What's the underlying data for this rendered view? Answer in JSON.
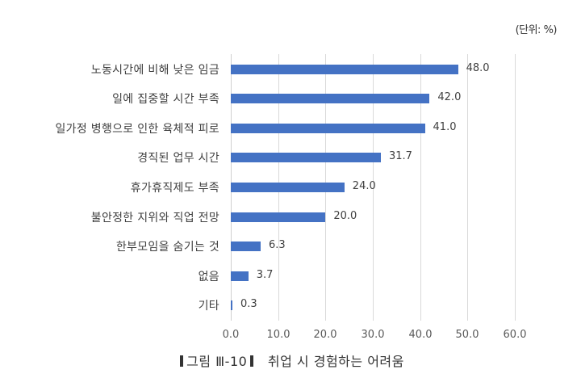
{
  "unit_label": "(단위: %)",
  "caption": {
    "figure": "그림 Ⅲ-10",
    "title": "취업 시 경험하는 어려움"
  },
  "chart_data": {
    "type": "bar",
    "orientation": "horizontal",
    "title": "취업 시 경험하는 어려움",
    "xlabel": "",
    "ylabel": "",
    "unit": "%",
    "xlim": [
      0,
      60
    ],
    "xticks": [
      "0.0",
      "10.0",
      "20.0",
      "30.0",
      "40.0",
      "50.0",
      "60.0"
    ],
    "grid": true,
    "legend": null,
    "bar_color": "#4472c4",
    "categories": [
      "노동시간에 비해 낮은 임금",
      "일에 집중할 시간 부족",
      "일가정 병행으로 인한 육체적 피로",
      "경직된 업무 시간",
      "휴가휴직제도 부족",
      "불안정한 지위와 직업 전망",
      "한부모임을 숨기는 것",
      "없음",
      "기타"
    ],
    "values": [
      48.0,
      42.0,
      41.0,
      31.7,
      24.0,
      20.0,
      6.3,
      3.7,
      0.3
    ],
    "value_labels": [
      "48.0",
      "42.0",
      "41.0",
      "31.7",
      "24.0",
      "20.0",
      "6.3",
      "3.7",
      "0.3"
    ]
  }
}
